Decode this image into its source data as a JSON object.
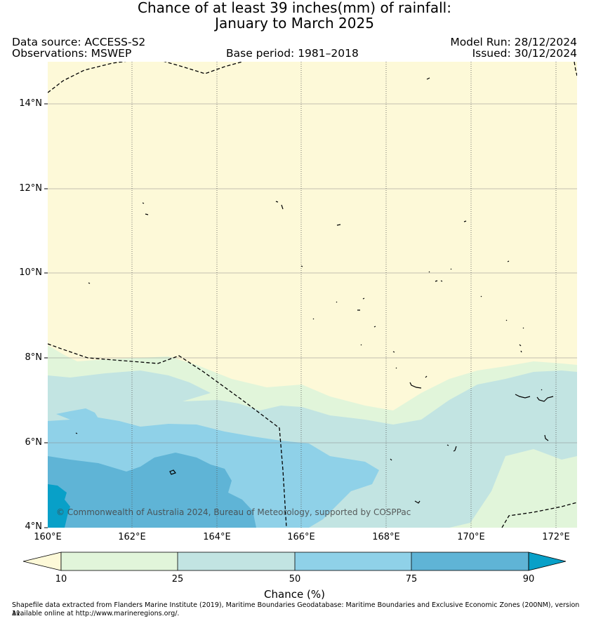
{
  "title": {
    "line1": "Chance of at least 39 inches(mm) of rainfall:",
    "line2": "January to March 2025"
  },
  "meta": {
    "data_source": "Data source: ACCESS-S2",
    "observations": "Observations: MSWEP",
    "base_period": "Base period: 1981–2018",
    "model_run": "Model Run: 28/12/2024",
    "issued": "Issued: 30/12/2024"
  },
  "map": {
    "lat_labels": [
      "14°N",
      "12°N",
      "10°N",
      "8°N",
      "6°N",
      "4°N"
    ],
    "lon_labels": [
      "160°E",
      "162°E",
      "164°E",
      "166°E",
      "168°E",
      "170°E",
      "172°E"
    ],
    "copyright": "© Commonwealth of Australia 2024, Bureau of Meteorology, supported by COSPPac",
    "colors": {
      "below_10": "#fdf9d8",
      "10_25": "#e1f5da",
      "25_50": "#c2e4e2",
      "50_75": "#8fd1e8",
      "75_90": "#5fb4d6",
      "above_90": "#08a0c8"
    }
  },
  "colorbar": {
    "ticks": [
      "10",
      "25",
      "50",
      "75",
      "90"
    ],
    "title": "Chance (%)"
  },
  "footnote": {
    "line1": "Shapefile data extracted from Flanders Marine Institute (2019), Maritime Boundaries Geodatabase: Maritime Boundaries and Exclusive Economic Zones (200NM), version 11.",
    "line2": "Available online at http://www.marineregions.org/."
  }
}
